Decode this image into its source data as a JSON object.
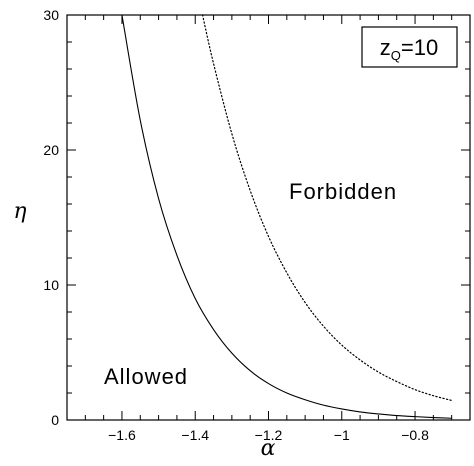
{
  "chart_data": {
    "type": "line",
    "xlabel": "α",
    "ylabel": "η",
    "xlim": [
      -1.75,
      -0.65
    ],
    "ylim": [
      0,
      30
    ],
    "x_ticks": [
      -1.6,
      -1.4,
      -1.2,
      -1,
      -0.8
    ],
    "x_tick_labels": [
      "−1.6",
      "−1.4",
      "−1.2",
      "−1",
      "−0.8"
    ],
    "y_ticks": [
      0,
      10,
      20,
      30
    ],
    "y_tick_labels": [
      "0",
      "10",
      "20",
      "30"
    ],
    "grid": false,
    "annotation_box": {
      "main": "z",
      "subscript": "Q",
      "suffix": "=10"
    },
    "region_labels": {
      "allowed": "Allowed",
      "forbidden": "Forbidden"
    },
    "series": [
      {
        "style": "solid",
        "points": [
          [
            -1.6,
            30
          ],
          [
            -1.55,
            22.2
          ],
          [
            -1.5,
            16.4
          ],
          [
            -1.45,
            12.2
          ],
          [
            -1.4,
            9.0
          ],
          [
            -1.35,
            6.7
          ],
          [
            -1.3,
            4.95
          ],
          [
            -1.25,
            3.65
          ],
          [
            -1.2,
            2.7
          ],
          [
            -1.15,
            2.0
          ],
          [
            -1.1,
            1.5
          ],
          [
            -1.05,
            1.1
          ],
          [
            -1.0,
            0.82
          ],
          [
            -0.95,
            0.6
          ],
          [
            -0.9,
            0.45
          ],
          [
            -0.85,
            0.33
          ],
          [
            -0.8,
            0.25
          ],
          [
            -0.75,
            0.18
          ],
          [
            -0.7,
            0.13
          ]
        ]
      },
      {
        "style": "dotted",
        "points": [
          [
            -1.38,
            30
          ],
          [
            -1.35,
            26.4
          ],
          [
            -1.3,
            21.2
          ],
          [
            -1.25,
            17.0
          ],
          [
            -1.2,
            13.6
          ],
          [
            -1.15,
            10.9
          ],
          [
            -1.1,
            8.7
          ],
          [
            -1.05,
            6.95
          ],
          [
            -1.0,
            5.55
          ],
          [
            -0.95,
            4.45
          ],
          [
            -0.9,
            3.55
          ],
          [
            -0.85,
            2.85
          ],
          [
            -0.8,
            2.25
          ],
          [
            -0.75,
            1.8
          ],
          [
            -0.7,
            1.45
          ]
        ]
      }
    ]
  }
}
